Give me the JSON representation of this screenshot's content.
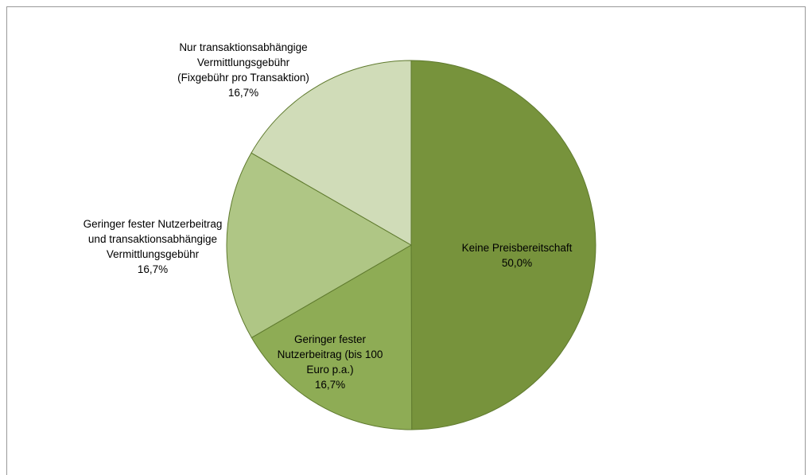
{
  "chart_data": {
    "type": "pie",
    "categories": [
      "Keine Preisbereitschaft",
      "Geringer fester Nutzerbeitrag (bis 100 Euro p.a.)",
      "Geringer fester Nutzerbeitrag und transaktionsabhängige Vermittlungsgebühr",
      "Nur transaktionsabhängige Vermittlungsgebühr (Fixgebühr pro Transaktion)"
    ],
    "values": [
      50.0,
      16.7,
      16.7,
      16.7
    ],
    "value_labels": [
      "50,0%",
      "16,7%",
      "16,7%",
      "16,7%"
    ],
    "colors": [
      "#77933c",
      "#8eac55",
      "#afc685",
      "#d0dcb8"
    ]
  }
}
